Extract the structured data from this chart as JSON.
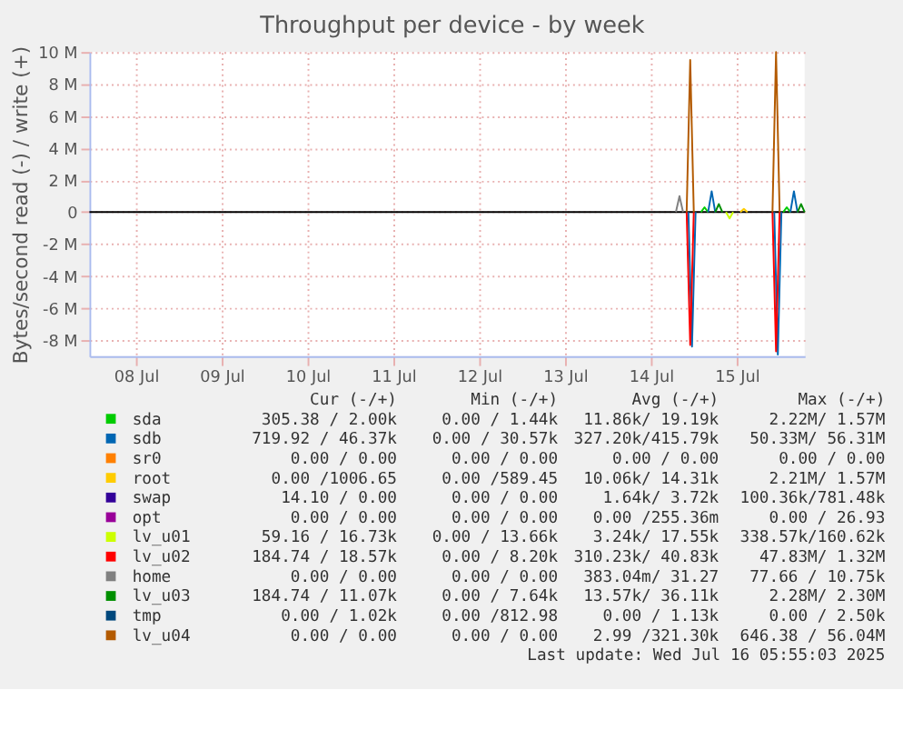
{
  "chart_data": {
    "type": "line",
    "title": "Throughput per device - by week",
    "ylabel": "Bytes/second read (-) / write (+)",
    "x": [
      "2025-07-14T22:00",
      "2025-07-14T23:00",
      "2025-07-15T00:00",
      "2025-07-15T12:00",
      "2025-07-15T22:00",
      "2025-07-15T23:00",
      "2025-07-16T00:00"
    ],
    "series": [
      {
        "name": "sda",
        "color": "#00cc00",
        "x": [
          "2025-07-15T02:00",
          "2025-07-15T03:00",
          "2025-07-15T04:00",
          "2025-07-15T12:00",
          "2025-07-16T01:00",
          "2025-07-16T02:00",
          "2025-07-16T03:00"
        ],
        "values": [
          0,
          300000,
          0,
          null,
          0,
          300000,
          0
        ]
      },
      {
        "name": "sdb",
        "color": "#0066b3",
        "x": [
          "2025-07-14T22:30",
          "2025-07-14T23:30",
          "2025-07-15T00:30",
          "2025-07-15T02:00",
          "2025-07-15T04:00",
          "2025-07-15T05:00",
          "2025-07-15T06:00",
          "2025-07-15T12:00",
          "2025-07-15T22:30",
          "2025-07-15T23:30",
          "2025-07-16T00:30",
          "2025-07-16T02:00",
          "2025-07-16T03:00",
          "2025-07-16T04:00",
          "2025-07-16T05:00"
        ],
        "values": [
          0,
          -8400000,
          0,
          null,
          0,
          1300000,
          0,
          null,
          0,
          -8900000,
          0,
          null,
          0,
          1300000,
          0
        ]
      },
      {
        "name": "sr0",
        "color": "#ff8000",
        "values": [
          null,
          null,
          null,
          null,
          null,
          null,
          null
        ]
      },
      {
        "name": "root",
        "color": "#ffcc00",
        "x": [
          "2025-07-15T13:00",
          "2025-07-15T14:00",
          "2025-07-15T15:00"
        ],
        "values": [
          0,
          200000,
          0
        ]
      },
      {
        "name": "swap",
        "color": "#330099",
        "values": [
          null,
          null,
          null,
          null,
          null,
          null,
          null
        ]
      },
      {
        "name": "opt",
        "color": "#990099",
        "values": [
          null,
          null,
          null,
          null,
          null,
          null,
          null
        ]
      },
      {
        "name": "lv_u01",
        "color": "#ccff00",
        "x": [
          "2025-07-15T09:00",
          "2025-07-15T10:00",
          "2025-07-15T11:00"
        ],
        "values": [
          0,
          -400000,
          0
        ]
      },
      {
        "name": "lv_u02",
        "color": "#ff0000",
        "values": [
          0,
          -8300000,
          0,
          null,
          0,
          -8700000,
          0
        ]
      },
      {
        "name": "home",
        "color": "#808080",
        "x": [
          "2025-07-14T19:00",
          "2025-07-14T20:00",
          "2025-07-14T21:00"
        ],
        "values": [
          0,
          1000000,
          0
        ]
      },
      {
        "name": "lv_u03",
        "color": "#008f00",
        "x": [
          "2025-07-15T06:00",
          "2025-07-15T07:00",
          "2025-07-15T08:00",
          "2025-07-15T12:00",
          "2025-07-16T05:00",
          "2025-07-16T06:00",
          "2025-07-16T07:00"
        ],
        "values": [
          0,
          500000,
          0,
          null,
          0,
          500000,
          0
        ]
      },
      {
        "name": "tmp",
        "color": "#00487d",
        "values": [
          null,
          null,
          null,
          null,
          null,
          null,
          null
        ]
      },
      {
        "name": "lv_u04",
        "color": "#b35a00",
        "values": [
          0,
          9500000,
          0,
          null,
          0,
          10000000,
          0
        ]
      }
    ],
    "xlim": [
      "2025-07-07T23:00",
      "2025-07-16T07:00"
    ],
    "xticks": [
      {
        "value": "2025-07-08T12:00",
        "label": "08 Jul"
      },
      {
        "value": "2025-07-09T12:00",
        "label": "09 Jul"
      },
      {
        "value": "2025-07-10T12:00",
        "label": "10 Jul"
      },
      {
        "value": "2025-07-11T12:00",
        "label": "11 Jul"
      },
      {
        "value": "2025-07-12T12:00",
        "label": "12 Jul"
      },
      {
        "value": "2025-07-13T12:00",
        "label": "13 Jul"
      },
      {
        "value": "2025-07-14T12:00",
        "label": "14 Jul"
      },
      {
        "value": "2025-07-15T12:00",
        "label": "15 Jul"
      }
    ],
    "ylim": [
      -9000000,
      10000000
    ],
    "yticks": [
      {
        "value": -8000000,
        "label": "-8 M"
      },
      {
        "value": -6000000,
        "label": "-6 M"
      },
      {
        "value": -4000000,
        "label": "-4 M"
      },
      {
        "value": -2000000,
        "label": "-2 M"
      },
      0,
      {
        "value": 2000000,
        "label": "2 M"
      },
      {
        "value": 4000000,
        "label": "4 M"
      },
      {
        "value": 6000000,
        "label": "6 M"
      },
      {
        "value": 8000000,
        "label": "8 M"
      },
      {
        "value": 10000000,
        "label": "10 M"
      }
    ],
    "ref_lines": [
      {
        "axis": "y",
        "value": 0,
        "color": "#000000"
      }
    ],
    "grid": true,
    "legend": "bottom",
    "annotations": [
      "Cur (-/+)",
      "Min (-/+)",
      "Avg (-/+)",
      "Max (-/+)",
      "305.38 / 2.00k",
      "0.00 / 1.44k",
      "11.86k/ 19.19k",
      "2.22M/ 1.57M",
      "719.92 / 46.37k",
      "0.00 / 30.57k",
      "327.20k/415.79k",
      "50.33M/ 56.31M",
      "0.00 / 0.00",
      "0.00 / 0.00",
      "0.00 / 0.00",
      "0.00 / 0.00",
      "0.00 /1006.65",
      "0.00 /589.45",
      "10.06k/ 14.31k",
      "2.21M/ 1.57M",
      "14.10 / 0.00",
      "0.00 / 0.00",
      "1.64k/ 3.72k",
      "100.36k/781.48k",
      "0.00 / 0.00",
      "0.00 / 0.00",
      "0.00 /255.36m",
      "0.00 / 26.93",
      "59.16 / 16.73k",
      "0.00 / 13.66k",
      "3.24k/ 17.55k",
      "338.57k/160.62k",
      "184.74 / 18.57k",
      "0.00 / 8.20k",
      "310.23k/ 40.83k",
      "47.83M/ 1.32M",
      "0.00 / 0.00",
      "0.00 / 0.00",
      "383.04m/ 31.27",
      "77.66 / 10.75k",
      "184.74 / 11.07k",
      "0.00 / 7.64k",
      "13.57k/ 36.11k",
      "2.28M/ 2.30M",
      "0.00 / 1.02k",
      "0.00 /812.98",
      "0.00 / 1.13k",
      "0.00 / 2.50k",
      "0.00 / 0.00",
      "0.00 / 0.00",
      "2.99 /321.30k",
      "646.38 / 56.04M",
      "Last update: Wed Jul 16 05:55:03 2025"
    ]
  }
}
